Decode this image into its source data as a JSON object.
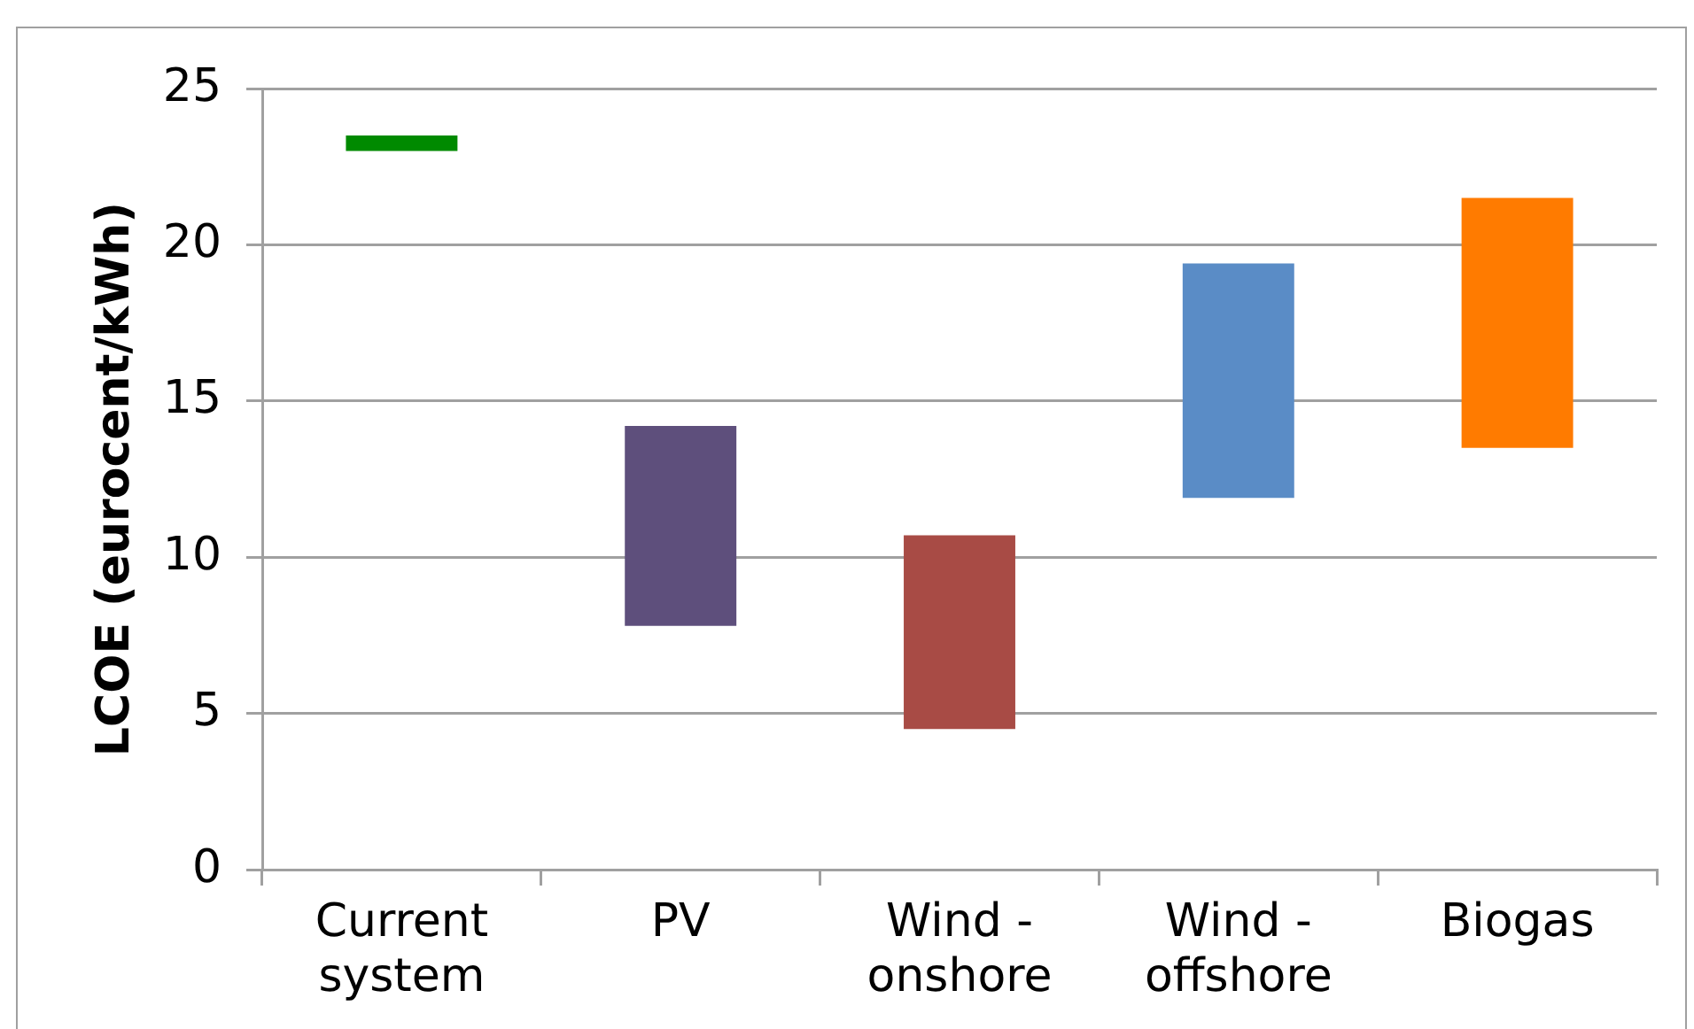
{
  "chart_data": {
    "type": "bar",
    "categories": [
      "Current system",
      "PV",
      "Wind - onshore",
      "Wind - offshore",
      "Biogas"
    ],
    "base": [
      23.0,
      7.8,
      4.5,
      11.9,
      13.5
    ],
    "values": [
      0.5,
      6.4,
      6.2,
      7.5,
      8.0
    ],
    "colors": [
      "#008a00",
      "#5e4f7c",
      "#a84b45",
      "#5a8cc6",
      "#ff7b00"
    ],
    "ylabel": "LCOE (eurocent/kWh)",
    "ylim": [
      0,
      25
    ],
    "yticks": [
      0,
      5,
      10,
      15,
      20,
      25
    ],
    "grid": "y"
  }
}
